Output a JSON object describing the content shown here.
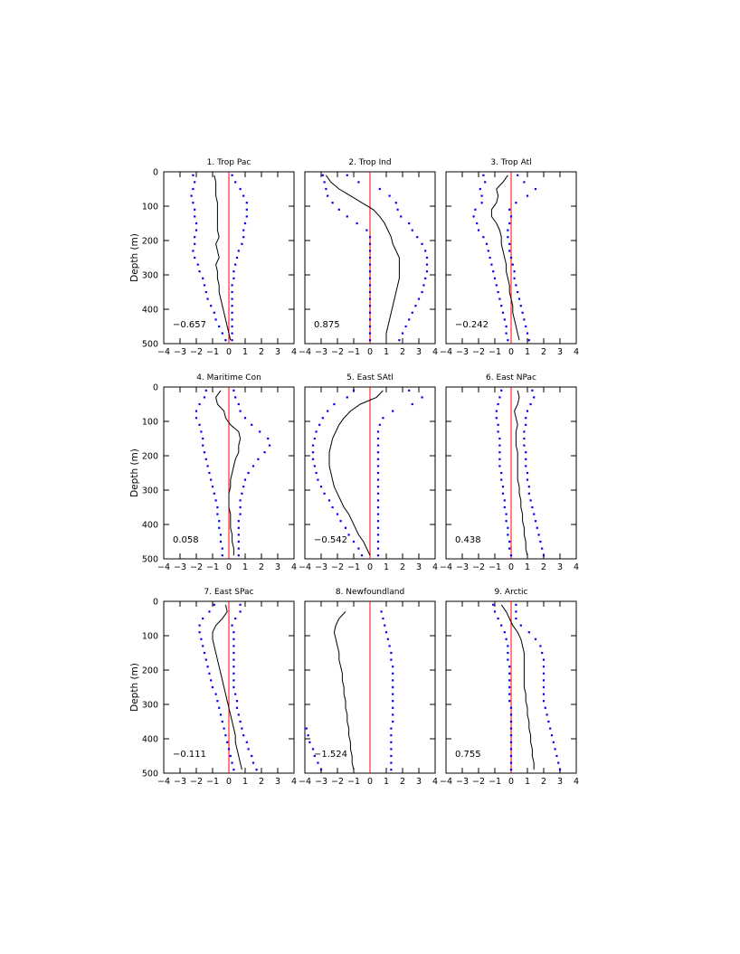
{
  "figure": {
    "ylabel": "Depth (m)",
    "x_ticks": [
      "−4",
      "−3",
      "−2",
      "−1",
      "0",
      "1",
      "2",
      "3",
      "4"
    ],
    "y_ticks": [
      "0",
      "100",
      "200",
      "300",
      "400",
      "500"
    ]
  },
  "colors": {
    "mean_line": "#000000",
    "bounds": "#0000ff",
    "zero_line": "#ff0000"
  },
  "chart_data": [
    {
      "type": "line",
      "title": "1. Trop Pac",
      "value_label": "−0.657",
      "xlim": [
        -4,
        4
      ],
      "ylim": [
        500,
        0
      ],
      "depth": [
        10,
        30,
        50,
        70,
        90,
        110,
        130,
        150,
        170,
        190,
        210,
        230,
        250,
        270,
        290,
        310,
        330,
        350,
        370,
        390,
        410,
        430,
        450,
        470,
        490
      ],
      "mean": [
        -0.9,
        -0.8,
        -0.8,
        -0.8,
        -0.7,
        -0.7,
        -0.7,
        -0.7,
        -0.7,
        -0.6,
        -0.8,
        -0.7,
        -0.6,
        -0.8,
        -0.7,
        -0.7,
        -0.6,
        -0.6,
        -0.5,
        -0.4,
        -0.3,
        -0.2,
        -0.1,
        0.0,
        0.1
      ],
      "lower": [
        -2.2,
        -2.1,
        -2.2,
        -2.3,
        -2.2,
        -2.1,
        -2.1,
        -2.0,
        -2.0,
        -2.1,
        -2.1,
        -2.2,
        -2.1,
        -1.9,
        -1.8,
        -1.6,
        -1.5,
        -1.4,
        -1.3,
        -1.1,
        -0.9,
        -0.8,
        -0.6,
        -0.4,
        -0.2
      ],
      "upper": [
        0.2,
        0.4,
        0.7,
        0.9,
        1.1,
        1.1,
        1.1,
        1.0,
        0.9,
        0.9,
        0.8,
        0.6,
        0.5,
        0.4,
        0.3,
        0.3,
        0.2,
        0.2,
        0.2,
        0.2,
        0.2,
        0.2,
        0.2,
        0.2,
        0.2
      ]
    },
    {
      "type": "line",
      "title": "2. Trop Ind",
      "value_label": "0.875",
      "xlim": [
        -4,
        4
      ],
      "ylim": [
        500,
        0
      ],
      "depth": [
        10,
        30,
        50,
        70,
        90,
        110,
        130,
        150,
        170,
        190,
        210,
        230,
        250,
        270,
        290,
        310,
        330,
        350,
        370,
        390,
        410,
        430,
        450,
        470,
        490
      ],
      "mean": [
        -2.7,
        -2.4,
        -1.9,
        -1.2,
        -0.5,
        0.2,
        0.6,
        0.9,
        1.1,
        1.3,
        1.4,
        1.6,
        1.8,
        1.8,
        1.8,
        1.8,
        1.7,
        1.6,
        1.5,
        1.4,
        1.3,
        1.2,
        1.1,
        1.0,
        1.0
      ],
      "lower": [
        -2.9,
        -2.8,
        -2.7,
        -2.6,
        -2.3,
        -1.9,
        -1.4,
        -0.8,
        -0.2,
        0.0,
        0.0,
        0.0,
        0.0,
        0.0,
        0.0,
        0.0,
        0.0,
        0.0,
        0.0,
        0.0,
        0.0,
        0.0,
        0.0,
        0.0,
        0.0
      ],
      "upper": [
        -1.4,
        -0.7,
        0.6,
        1.2,
        1.6,
        1.7,
        1.9,
        2.4,
        2.6,
        2.9,
        3.2,
        3.4,
        3.5,
        3.5,
        3.5,
        3.4,
        3.3,
        3.2,
        3.0,
        2.8,
        2.6,
        2.4,
        2.2,
        2.0,
        1.8
      ]
    },
    {
      "type": "line",
      "title": "3. Trop Atl",
      "value_label": "−0.242",
      "xlim": [
        -4,
        4
      ],
      "ylim": [
        500,
        0
      ],
      "depth": [
        10,
        30,
        50,
        70,
        90,
        110,
        130,
        150,
        170,
        190,
        210,
        230,
        250,
        270,
        290,
        310,
        330,
        350,
        370,
        390,
        410,
        430,
        450,
        470,
        490
      ],
      "mean": [
        -0.2,
        -0.5,
        -0.9,
        -0.8,
        -0.9,
        -1.2,
        -1.2,
        -0.9,
        -0.7,
        -0.6,
        -0.6,
        -0.5,
        -0.4,
        -0.3,
        -0.3,
        -0.2,
        -0.1,
        -0.1,
        0.0,
        0.1,
        0.1,
        0.2,
        0.3,
        0.4,
        0.5
      ],
      "lower": [
        -1.7,
        -1.6,
        -1.9,
        -1.8,
        -1.8,
        -2.2,
        -2.3,
        -2.1,
        -2.0,
        -1.7,
        -1.5,
        -1.4,
        -1.3,
        -1.2,
        -1.1,
        -1.0,
        -0.9,
        -0.8,
        -0.7,
        -0.6,
        -0.5,
        -0.4,
        -0.3,
        -0.3,
        -0.2
      ],
      "upper": [
        0.4,
        0.8,
        1.5,
        1.0,
        0.3,
        -0.1,
        0.0,
        -0.1,
        -0.2,
        -0.2,
        -0.1,
        -0.1,
        0.0,
        0.1,
        0.2,
        0.2,
        0.3,
        0.4,
        0.5,
        0.6,
        0.7,
        0.8,
        0.9,
        1.0,
        1.1
      ]
    },
    {
      "type": "line",
      "title": "4. Maritime Con",
      "value_label": "0.058",
      "xlim": [
        -4,
        4
      ],
      "ylim": [
        500,
        0
      ],
      "depth": [
        10,
        30,
        50,
        70,
        90,
        110,
        130,
        150,
        170,
        190,
        210,
        230,
        250,
        270,
        290,
        310,
        330,
        350,
        370,
        390,
        410,
        430,
        450,
        470,
        490
      ],
      "mean": [
        -0.5,
        -0.8,
        -0.7,
        -0.3,
        -0.2,
        0.1,
        0.6,
        0.7,
        0.6,
        0.6,
        0.4,
        0.3,
        0.2,
        0.1,
        0.1,
        0.0,
        0.0,
        0.0,
        0.1,
        0.1,
        0.1,
        0.2,
        0.2,
        0.3,
        0.3
      ],
      "lower": [
        -1.4,
        -1.5,
        -1.8,
        -2.0,
        -2.0,
        -1.8,
        -1.7,
        -1.6,
        -1.6,
        -1.5,
        -1.4,
        -1.3,
        -1.2,
        -1.1,
        -1.0,
        -0.9,
        -0.8,
        -0.7,
        -0.7,
        -0.6,
        -0.6,
        -0.5,
        -0.5,
        -0.4,
        -0.4
      ],
      "upper": [
        0.3,
        0.4,
        0.6,
        0.7,
        1.0,
        1.4,
        1.9,
        2.4,
        2.5,
        2.2,
        1.8,
        1.5,
        1.2,
        1.0,
        0.9,
        0.8,
        0.7,
        0.7,
        0.7,
        0.6,
        0.6,
        0.6,
        0.6,
        0.6,
        0.6
      ]
    },
    {
      "type": "line",
      "title": "5. East SAtl",
      "value_label": "−0.542",
      "xlim": [
        -4,
        4
      ],
      "ylim": [
        500,
        0
      ],
      "depth": [
        10,
        30,
        50,
        70,
        90,
        110,
        130,
        150,
        170,
        190,
        210,
        230,
        250,
        270,
        290,
        310,
        330,
        350,
        370,
        390,
        410,
        430,
        450,
        470,
        490
      ],
      "mean": [
        0.8,
        0.4,
        -0.6,
        -1.2,
        -1.6,
        -1.9,
        -2.1,
        -2.3,
        -2.4,
        -2.5,
        -2.5,
        -2.5,
        -2.4,
        -2.3,
        -2.2,
        -2.0,
        -1.8,
        -1.6,
        -1.3,
        -1.1,
        -0.9,
        -0.7,
        -0.4,
        -0.2,
        0.0
      ],
      "lower": [
        -1.0,
        -1.4,
        -2.2,
        -2.6,
        -2.9,
        -3.1,
        -3.3,
        -3.4,
        -3.5,
        -3.5,
        -3.5,
        -3.4,
        -3.3,
        -3.2,
        -3.0,
        -2.8,
        -2.5,
        -2.3,
        -2.0,
        -1.8,
        -1.5,
        -1.3,
        -1.0,
        -0.7,
        -0.5
      ],
      "upper": [
        2.4,
        3.2,
        2.6,
        1.4,
        0.8,
        0.6,
        0.5,
        0.5,
        0.5,
        0.5,
        0.5,
        0.5,
        0.5,
        0.5,
        0.5,
        0.5,
        0.5,
        0.5,
        0.5,
        0.5,
        0.5,
        0.5,
        0.5,
        0.5,
        0.5
      ]
    },
    {
      "type": "line",
      "title": "6. East NPac",
      "value_label": "0.438",
      "xlim": [
        -4,
        4
      ],
      "ylim": [
        500,
        0
      ],
      "depth": [
        10,
        30,
        50,
        70,
        90,
        110,
        130,
        150,
        170,
        190,
        210,
        230,
        250,
        270,
        290,
        310,
        330,
        350,
        370,
        390,
        410,
        430,
        450,
        470,
        490
      ],
      "mean": [
        0.4,
        0.5,
        0.4,
        0.2,
        0.3,
        0.4,
        0.3,
        0.3,
        0.3,
        0.4,
        0.4,
        0.4,
        0.4,
        0.4,
        0.5,
        0.5,
        0.6,
        0.6,
        0.7,
        0.7,
        0.8,
        0.8,
        0.9,
        0.9,
        1.0
      ],
      "lower": [
        -0.6,
        -0.7,
        -0.8,
        -0.9,
        -0.9,
        -0.8,
        -0.8,
        -0.7,
        -0.7,
        -0.7,
        -0.7,
        -0.7,
        -0.6,
        -0.6,
        -0.5,
        -0.5,
        -0.4,
        -0.4,
        -0.3,
        -0.3,
        -0.2,
        -0.2,
        -0.1,
        -0.1,
        0.0
      ],
      "upper": [
        1.3,
        1.4,
        1.2,
        1.0,
        0.9,
        0.9,
        0.8,
        0.8,
        0.8,
        0.9,
        0.9,
        0.9,
        1.0,
        1.0,
        1.1,
        1.1,
        1.2,
        1.3,
        1.4,
        1.5,
        1.6,
        1.7,
        1.8,
        1.9,
        2.0
      ]
    },
    {
      "type": "line",
      "title": "7. East SPac",
      "value_label": "−0.111",
      "xlim": [
        -4,
        4
      ],
      "ylim": [
        500,
        0
      ],
      "depth": [
        10,
        30,
        50,
        70,
        90,
        110,
        130,
        150,
        170,
        190,
        210,
        230,
        250,
        270,
        290,
        310,
        330,
        350,
        370,
        390,
        410,
        430,
        450,
        470,
        490
      ],
      "mean": [
        -0.2,
        -0.1,
        -0.4,
        -0.8,
        -1.0,
        -1.0,
        -0.9,
        -0.8,
        -0.7,
        -0.6,
        -0.5,
        -0.4,
        -0.3,
        -0.2,
        -0.1,
        0.0,
        0.1,
        0.2,
        0.3,
        0.4,
        0.4,
        0.5,
        0.6,
        0.7,
        0.8
      ],
      "lower": [
        -0.9,
        -1.2,
        -1.6,
        -1.8,
        -1.8,
        -1.7,
        -1.6,
        -1.5,
        -1.4,
        -1.3,
        -1.2,
        -1.1,
        -1.0,
        -0.8,
        -0.7,
        -0.6,
        -0.5,
        -0.4,
        -0.3,
        -0.2,
        -0.1,
        0.0,
        0.1,
        0.2,
        0.3
      ],
      "upper": [
        0.7,
        0.7,
        0.4,
        0.2,
        0.3,
        0.3,
        0.3,
        0.3,
        0.3,
        0.3,
        0.3,
        0.3,
        0.3,
        0.4,
        0.5,
        0.5,
        0.6,
        0.7,
        0.8,
        0.9,
        1.1,
        1.2,
        1.4,
        1.5,
        1.7
      ]
    },
    {
      "type": "line",
      "title": "8. Newfoundland",
      "value_label": "−1.524",
      "xlim": [
        -4,
        4
      ],
      "ylim": [
        500,
        0
      ],
      "depth": [
        30,
        50,
        70,
        90,
        110,
        130,
        150,
        170,
        190,
        210,
        230,
        250,
        270,
        290,
        310,
        330,
        350,
        370,
        390,
        410,
        430,
        450,
        470,
        490
      ],
      "mean": [
        -1.5,
        -1.9,
        -2.1,
        -2.2,
        -2.1,
        -2.0,
        -1.9,
        -1.9,
        -1.8,
        -1.7,
        -1.7,
        -1.6,
        -1.6,
        -1.5,
        -1.5,
        -1.4,
        -1.4,
        -1.3,
        -1.3,
        -1.2,
        -1.2,
        -1.1,
        -1.1,
        -1.0
      ],
      "lower": [
        null,
        null,
        null,
        null,
        null,
        null,
        null,
        null,
        null,
        null,
        null,
        null,
        null,
        null,
        null,
        null,
        null,
        -3.9,
        -3.8,
        -3.7,
        -3.5,
        -3.4,
        -3.2,
        -3.0
      ],
      "upper": [
        0.7,
        0.8,
        0.9,
        1.0,
        1.1,
        1.2,
        1.3,
        1.3,
        1.4,
        1.4,
        1.4,
        1.4,
        1.4,
        1.4,
        1.4,
        1.4,
        1.4,
        1.3,
        1.3,
        1.3,
        1.3,
        1.3,
        1.3,
        1.3
      ]
    },
    {
      "type": "line",
      "title": "9. Arctic",
      "value_label": "0.755",
      "xlim": [
        -4,
        4
      ],
      "ylim": [
        500,
        0
      ],
      "depth": [
        10,
        30,
        50,
        70,
        90,
        110,
        130,
        150,
        170,
        190,
        210,
        230,
        250,
        270,
        290,
        310,
        330,
        350,
        370,
        390,
        410,
        430,
        450,
        470,
        490
      ],
      "mean": [
        -0.6,
        -0.3,
        -0.1,
        0.1,
        0.4,
        0.6,
        0.7,
        0.8,
        0.8,
        0.8,
        0.8,
        0.8,
        0.8,
        0.9,
        0.9,
        1.0,
        1.0,
        1.1,
        1.1,
        1.2,
        1.2,
        1.3,
        1.3,
        1.4,
        1.4
      ],
      "lower": [
        -1.1,
        -1.0,
        -0.8,
        -0.6,
        -0.4,
        -0.3,
        -0.2,
        -0.2,
        -0.2,
        -0.1,
        -0.1,
        -0.1,
        -0.1,
        -0.1,
        -0.1,
        0.0,
        0.0,
        0.0,
        0.0,
        0.0,
        0.0,
        0.0,
        0.0,
        0.0,
        0.0
      ],
      "upper": [
        0.3,
        0.3,
        0.3,
        0.6,
        1.1,
        1.5,
        1.8,
        1.9,
        2.0,
        2.0,
        2.0,
        2.0,
        2.0,
        2.0,
        2.0,
        2.1,
        2.2,
        2.3,
        2.4,
        2.5,
        2.6,
        2.7,
        2.8,
        2.9,
        3.0
      ]
    }
  ]
}
